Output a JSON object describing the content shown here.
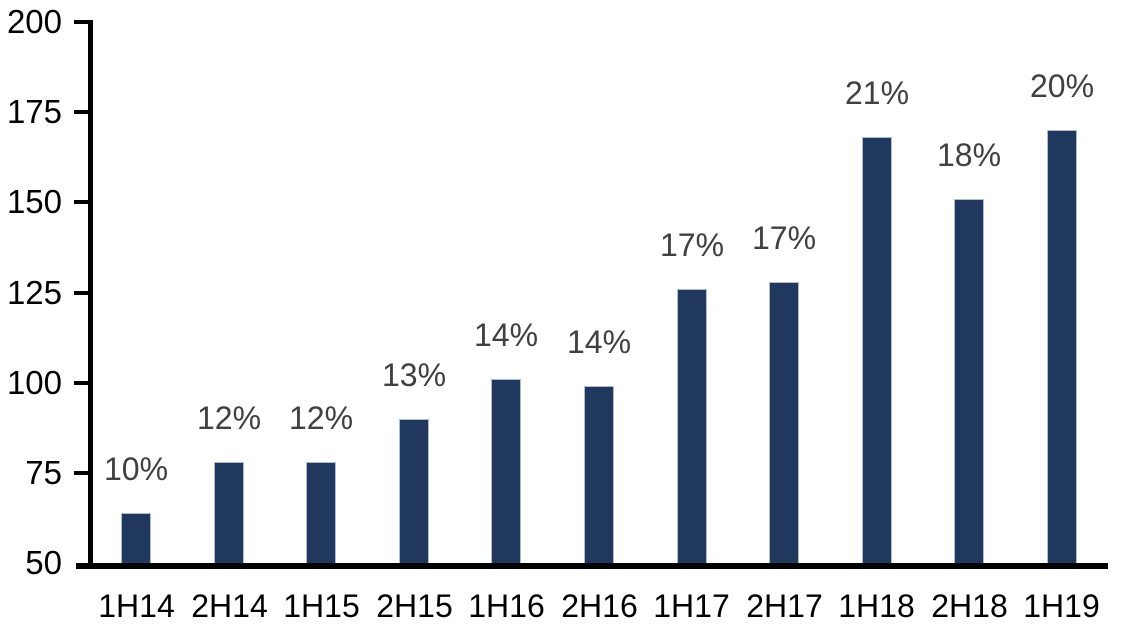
{
  "chart_data": {
    "type": "bar",
    "categories": [
      "1H14",
      "2H14",
      "1H15",
      "2H15",
      "1H16",
      "2H16",
      "1H17",
      "2H17",
      "1H18",
      "2H18",
      "1H19"
    ],
    "values": [
      64,
      78,
      78,
      90,
      101,
      99,
      126,
      128,
      168,
      151,
      170
    ],
    "data_labels": [
      "10%",
      "12%",
      "12%",
      "13%",
      "14%",
      "14%",
      "17%",
      "17%",
      "21%",
      "18%",
      "20%"
    ],
    "ylim": [
      50,
      200
    ],
    "yticks": [
      50,
      75,
      100,
      125,
      150,
      175,
      200
    ],
    "ytick_labels": [
      "50",
      "75",
      "100",
      "125",
      "150",
      "175",
      "200"
    ],
    "grid": false,
    "legend": false,
    "colors": {
      "bar_fill": "#20385e",
      "bar_border": "#aebdd1",
      "data_label": "#404040",
      "axis_text": "#000000",
      "axis_line": "#000000",
      "background": "#ffffff"
    }
  }
}
